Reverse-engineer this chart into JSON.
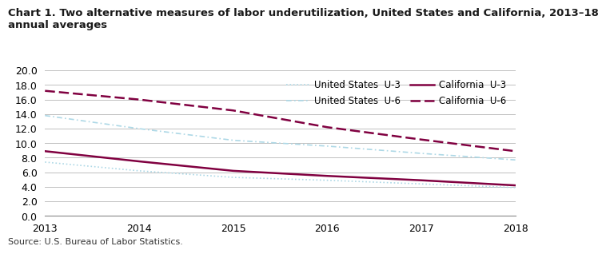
{
  "title": "Chart 1. Two alternative measures of labor underutilization, United States and California, 2013–18\nannual averages",
  "source": "Source: U.S. Bureau of Labor Statistics.",
  "years": [
    2013,
    2014,
    2015,
    2016,
    2017,
    2018
  ],
  "us_u3": [
    7.4,
    6.2,
    5.3,
    4.9,
    4.4,
    3.9
  ],
  "us_u6": [
    13.8,
    12.0,
    10.4,
    9.6,
    8.6,
    7.7
  ],
  "ca_u3": [
    8.9,
    7.5,
    6.2,
    5.5,
    4.9,
    4.2
  ],
  "ca_u6": [
    17.2,
    16.0,
    14.5,
    12.2,
    10.5,
    8.9
  ],
  "color_us": "#add8e6",
  "color_ca": "#800040",
  "ylim": [
    0.0,
    20.0
  ],
  "yticks": [
    0.0,
    2.0,
    4.0,
    6.0,
    8.0,
    10.0,
    12.0,
    14.0,
    16.0,
    18.0,
    20.0
  ],
  "grid_color": "#c0c0c0",
  "background_color": "#ffffff",
  "title_fontsize": 9.5,
  "axis_fontsize": 9,
  "legend_fontsize": 8.5
}
